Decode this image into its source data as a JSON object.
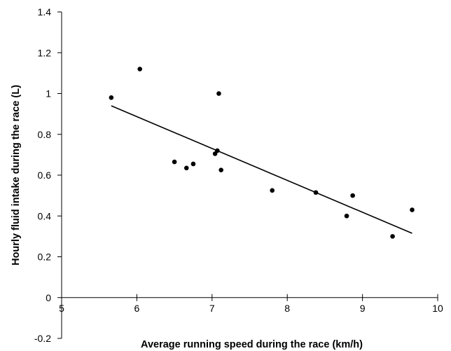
{
  "chart_data": {
    "type": "scatter",
    "title": "",
    "xlabel": "Average running speed during the race (km/h)",
    "ylabel": "Hourly fluid intake during the race (L)",
    "xlim": [
      5,
      10
    ],
    "ylim": [
      -0.2,
      1.4
    ],
    "x_ticks": [
      5,
      6,
      7,
      8,
      9,
      10
    ],
    "x_tick_labels": [
      "5",
      "6",
      "7",
      "8",
      "9",
      "10"
    ],
    "y_ticks": [
      -0.2,
      0,
      0.2,
      0.4,
      0.6,
      0.8,
      1,
      1.2,
      1.4
    ],
    "y_tick_labels": [
      "-0.2",
      "0",
      "0.2",
      "0.4",
      "0.6",
      "0.8",
      "1",
      "1.2",
      "1.4"
    ],
    "grid": false,
    "legend": "none",
    "colors": {
      "points": "#000000",
      "trendline": "#000000",
      "axes": "#000000"
    },
    "series": [
      {
        "points": [
          {
            "x": 5.66,
            "y": 0.98
          },
          {
            "x": 6.04,
            "y": 1.12
          },
          {
            "x": 6.5,
            "y": 0.665
          },
          {
            "x": 6.66,
            "y": 0.635
          },
          {
            "x": 6.75,
            "y": 0.655
          },
          {
            "x": 7.04,
            "y": 0.705
          },
          {
            "x": 7.07,
            "y": 0.72
          },
          {
            "x": 7.09,
            "y": 1.0
          },
          {
            "x": 7.12,
            "y": 0.625
          },
          {
            "x": 7.8,
            "y": 0.525
          },
          {
            "x": 8.38,
            "y": 0.515
          },
          {
            "x": 8.79,
            "y": 0.4
          },
          {
            "x": 8.87,
            "y": 0.5
          },
          {
            "x": 9.4,
            "y": 0.3
          },
          {
            "x": 9.66,
            "y": 0.43
          }
        ]
      }
    ],
    "trendline": {
      "type": "linear",
      "start": {
        "x": 5.66,
        "y": 0.94
      },
      "end": {
        "x": 9.66,
        "y": 0.315
      }
    }
  }
}
